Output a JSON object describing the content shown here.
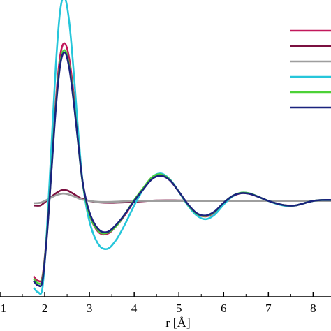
{
  "chart_data": {
    "type": "line",
    "xlabel": "r [Å]",
    "ylabel": "",
    "title": "",
    "xlim": [
      1,
      8.4
    ],
    "ylim": [
      -2.1,
      4.4
    ],
    "x_ticks": [
      "1",
      "2",
      "3",
      "4",
      "5",
      "6",
      "7",
      "8"
    ],
    "grid": false,
    "legend": "top-right, series labels not legible",
    "series": [
      {
        "color": "#c2185b",
        "x": [
          1.75,
          1.85,
          1.95,
          2.05,
          2.15,
          2.25,
          2.35,
          2.45,
          2.55,
          2.65,
          2.75,
          2.85,
          3.0,
          3.2,
          3.4,
          3.6,
          3.8,
          4.0,
          4.2,
          4.4,
          4.6,
          4.8,
          5.0,
          5.2,
          5.4,
          5.6,
          5.8,
          6.0,
          6.2,
          6.4,
          6.6,
          6.8,
          7.0,
          7.2,
          7.4,
          7.6,
          7.8,
          8.0,
          8.2,
          8.4
        ],
        "y": [
          -1.65,
          -1.75,
          -1.65,
          -0.7,
          0.7,
          2.2,
          3.2,
          3.45,
          3.1,
          2.3,
          1.3,
          0.4,
          -0.3,
          -0.68,
          -0.72,
          -0.55,
          -0.3,
          0.0,
          0.25,
          0.5,
          0.56,
          0.45,
          0.2,
          -0.08,
          -0.28,
          -0.34,
          -0.25,
          -0.05,
          0.1,
          0.17,
          0.15,
          0.08,
          0.0,
          -0.06,
          -0.1,
          -0.1,
          -0.05,
          0.0,
          0.02,
          0.02
        ]
      },
      {
        "color": "#7b1040",
        "x": [
          1.75,
          1.9,
          2.0,
          2.1,
          2.2,
          2.3,
          2.4,
          2.5,
          2.6,
          2.7,
          2.8,
          3.0,
          3.2,
          3.5,
          4.0,
          4.5,
          5.0,
          5.5,
          6.0,
          6.5,
          7.0,
          7.5,
          8.0,
          8.4
        ],
        "y": [
          -0.1,
          -0.1,
          -0.03,
          0.05,
          0.13,
          0.2,
          0.24,
          0.23,
          0.18,
          0.12,
          0.06,
          0.0,
          -0.03,
          -0.04,
          -0.02,
          0.01,
          0.01,
          0.0,
          0.0,
          0.0,
          0.0,
          0.0,
          0.0,
          0.0
        ]
      },
      {
        "color": "#9e9e9e",
        "x": [
          1.75,
          1.9,
          2.0,
          2.1,
          2.2,
          2.3,
          2.4,
          2.5,
          2.6,
          2.7,
          2.8,
          3.0,
          3.2,
          3.5,
          4.0,
          4.5,
          5.0,
          5.5,
          6.0,
          6.5,
          7.0,
          7.5,
          8.0,
          8.4
        ],
        "y": [
          -0.05,
          -0.04,
          0.0,
          0.05,
          0.1,
          0.14,
          0.16,
          0.15,
          0.12,
          0.08,
          0.04,
          0.0,
          -0.02,
          -0.02,
          0.0,
          0.0,
          0.0,
          0.0,
          0.0,
          0.0,
          0.0,
          0.0,
          0.0,
          0.0
        ]
      },
      {
        "color": "#26c6da",
        "x": [
          1.75,
          1.85,
          1.95,
          2.05,
          2.15,
          2.25,
          2.35,
          2.45,
          2.55,
          2.65,
          2.75,
          2.85,
          3.0,
          3.2,
          3.4,
          3.6,
          3.8,
          4.0,
          4.2,
          4.4,
          4.6,
          4.8,
          5.0,
          5.2,
          5.4,
          5.6,
          5.8,
          6.0,
          6.2,
          6.4,
          6.6,
          6.8,
          7.0,
          7.2,
          7.4,
          7.6,
          7.8,
          8.0,
          8.2,
          8.4
        ],
        "y": [
          -1.9,
          -2.0,
          -1.9,
          -0.6,
          1.2,
          3.0,
          4.2,
          4.45,
          3.9,
          2.8,
          1.5,
          0.4,
          -0.45,
          -0.95,
          -1.05,
          -0.85,
          -0.5,
          -0.1,
          0.25,
          0.52,
          0.6,
          0.47,
          0.2,
          -0.1,
          -0.32,
          -0.4,
          -0.3,
          -0.08,
          0.1,
          0.18,
          0.16,
          0.08,
          0.0,
          -0.07,
          -0.11,
          -0.1,
          -0.05,
          0.0,
          0.02,
          0.02
        ]
      },
      {
        "color": "#4cd137",
        "x": [
          1.75,
          1.85,
          1.95,
          2.05,
          2.15,
          2.25,
          2.35,
          2.45,
          2.55,
          2.65,
          2.75,
          2.85,
          3.0,
          3.2,
          3.4,
          3.6,
          3.8,
          4.0,
          4.2,
          4.4,
          4.6,
          4.8,
          5.0,
          5.2,
          5.4,
          5.6,
          5.8,
          6.0,
          6.2,
          6.4,
          6.6,
          6.8,
          7.0,
          7.2,
          7.4,
          7.6,
          7.8,
          8.0,
          8.2,
          8.4
        ],
        "y": [
          -1.7,
          -1.8,
          -1.7,
          -0.72,
          0.68,
          2.1,
          3.05,
          3.3,
          2.95,
          2.2,
          1.25,
          0.38,
          -0.3,
          -0.66,
          -0.7,
          -0.55,
          -0.28,
          0.02,
          0.28,
          0.52,
          0.58,
          0.46,
          0.2,
          -0.08,
          -0.28,
          -0.33,
          -0.24,
          -0.04,
          0.11,
          0.18,
          0.16,
          0.08,
          0.0,
          -0.06,
          -0.1,
          -0.1,
          -0.05,
          0.0,
          0.02,
          0.02
        ]
      },
      {
        "color": "#1a237e",
        "x": [
          1.75,
          1.85,
          1.95,
          2.05,
          2.15,
          2.25,
          2.35,
          2.45,
          2.55,
          2.65,
          2.75,
          2.85,
          3.0,
          3.2,
          3.4,
          3.6,
          3.8,
          4.0,
          4.2,
          4.4,
          4.6,
          4.8,
          5.0,
          5.2,
          5.4,
          5.6,
          5.8,
          6.0,
          6.2,
          6.4,
          6.6,
          6.8,
          7.0,
          7.2,
          7.4,
          7.6,
          7.8,
          8.0,
          8.2,
          8.4
        ],
        "y": [
          -1.75,
          -1.85,
          -1.75,
          -0.75,
          0.65,
          2.05,
          3.0,
          3.25,
          2.9,
          2.15,
          1.25,
          0.4,
          -0.25,
          -0.62,
          -0.68,
          -0.52,
          -0.28,
          0.0,
          0.25,
          0.48,
          0.55,
          0.45,
          0.2,
          -0.07,
          -0.27,
          -0.32,
          -0.23,
          -0.04,
          0.11,
          0.17,
          0.15,
          0.08,
          0.0,
          -0.06,
          -0.1,
          -0.1,
          -0.05,
          0.0,
          0.02,
          0.02
        ]
      }
    ]
  }
}
